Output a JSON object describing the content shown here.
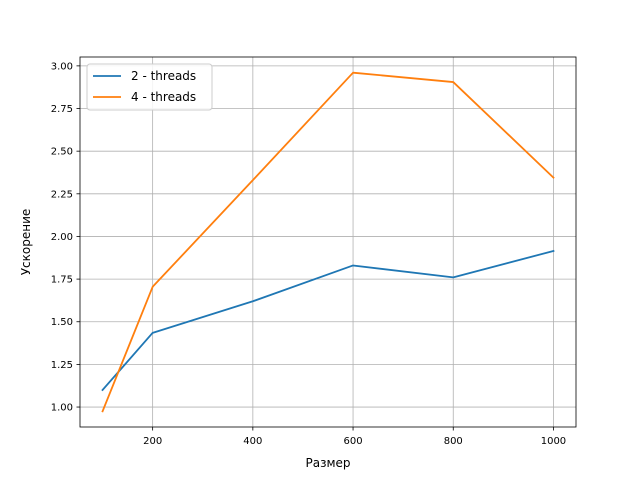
{
  "chart_data": {
    "type": "line",
    "x": [
      100,
      200,
      400,
      600,
      800,
      1000
    ],
    "series": [
      {
        "name": "2 - threads",
        "color": "#1f77b4",
        "values": [
          1.1,
          1.435,
          1.62,
          1.83,
          1.76,
          1.915
        ]
      },
      {
        "name": "4 - threads",
        "color": "#ff7f0e",
        "values": [
          0.975,
          1.705,
          2.33,
          2.96,
          2.905,
          2.345
        ]
      }
    ],
    "title": "",
    "xlabel": "Размер",
    "ylabel": "Ускорение",
    "xlim": [
      55,
      1045
    ],
    "ylim": [
      0.883,
      3.052
    ],
    "xticks": [
      200,
      400,
      600,
      800,
      1000
    ],
    "yticks": [
      1.0,
      1.25,
      1.5,
      1.75,
      2.0,
      2.25,
      2.5,
      2.75,
      3.0
    ],
    "xtick_labels": [
      "200",
      "400",
      "600",
      "800",
      "1000"
    ],
    "ytick_labels": [
      "1.00",
      "1.25",
      "1.50",
      "1.75",
      "2.00",
      "2.25",
      "2.50",
      "2.75",
      "3.00"
    ],
    "grid": true,
    "legend_position": "top-left"
  }
}
